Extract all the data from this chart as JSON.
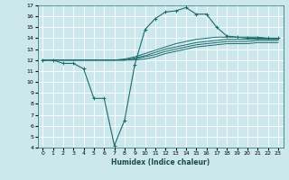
{
  "xlabel": "Humidex (Indice chaleur)",
  "ylabel": "",
  "bg_color": "#cce8ec",
  "line_color": "#1a6b6b",
  "grid_color": "#ffffff",
  "xlim": [
    -0.5,
    23.5
  ],
  "ylim": [
    4,
    17
  ],
  "xticks": [
    0,
    1,
    2,
    3,
    4,
    5,
    6,
    7,
    8,
    9,
    10,
    11,
    12,
    13,
    14,
    15,
    16,
    17,
    18,
    19,
    20,
    21,
    22,
    23
  ],
  "yticks": [
    4,
    5,
    6,
    7,
    8,
    9,
    10,
    11,
    12,
    13,
    14,
    15,
    16,
    17
  ],
  "lines": [
    {
      "x": [
        0,
        1,
        2,
        3,
        4,
        5,
        6,
        7,
        8,
        9,
        10,
        11,
        12,
        13,
        14,
        15,
        16,
        17,
        18,
        19,
        20,
        21,
        22,
        23
      ],
      "y": [
        12,
        12,
        11.7,
        11.7,
        11.2,
        8.5,
        8.5,
        4.2,
        6.5,
        11.6,
        14.8,
        15.8,
        16.4,
        16.5,
        16.8,
        16.2,
        16.2,
        15.0,
        14.2,
        14.1,
        14.0,
        14.0,
        14.0,
        14.0
      ],
      "marker": "+"
    },
    {
      "x": [
        0,
        1,
        2,
        3,
        4,
        5,
        6,
        7,
        8,
        9,
        10,
        11,
        12,
        13,
        14,
        15,
        16,
        17,
        18,
        19,
        20,
        21,
        22,
        23
      ],
      "y": [
        12,
        12,
        12,
        12,
        12,
        12,
        12,
        12,
        12.1,
        12.3,
        12.6,
        12.9,
        13.2,
        13.5,
        13.7,
        13.9,
        14.0,
        14.1,
        14.1,
        14.1,
        14.1,
        14.1,
        14.0,
        14.0
      ],
      "marker": null
    },
    {
      "x": [
        0,
        1,
        2,
        3,
        4,
        5,
        6,
        7,
        8,
        9,
        10,
        11,
        12,
        13,
        14,
        15,
        16,
        17,
        18,
        19,
        20,
        21,
        22,
        23
      ],
      "y": [
        12,
        12,
        12,
        12,
        12,
        12,
        12,
        12,
        12.0,
        12.2,
        12.4,
        12.7,
        13.0,
        13.2,
        13.4,
        13.6,
        13.7,
        13.8,
        13.9,
        13.9,
        13.9,
        13.9,
        13.9,
        13.9
      ],
      "marker": null
    },
    {
      "x": [
        0,
        1,
        2,
        3,
        4,
        5,
        6,
        7,
        8,
        9,
        10,
        11,
        12,
        13,
        14,
        15,
        16,
        17,
        18,
        19,
        20,
        21,
        22,
        23
      ],
      "y": [
        12,
        12,
        12,
        12,
        12,
        12,
        12,
        12,
        12.0,
        12.1,
        12.3,
        12.5,
        12.8,
        13.0,
        13.2,
        13.4,
        13.5,
        13.6,
        13.7,
        13.7,
        13.7,
        13.8,
        13.8,
        13.8
      ],
      "marker": null
    },
    {
      "x": [
        0,
        1,
        2,
        3,
        4,
        5,
        6,
        7,
        8,
        9,
        10,
        11,
        12,
        13,
        14,
        15,
        16,
        17,
        18,
        19,
        20,
        21,
        22,
        23
      ],
      "y": [
        12,
        12,
        12,
        12,
        12,
        12,
        12,
        12,
        12.0,
        12.0,
        12.1,
        12.3,
        12.6,
        12.8,
        13.0,
        13.2,
        13.3,
        13.4,
        13.5,
        13.5,
        13.5,
        13.6,
        13.6,
        13.6
      ],
      "marker": null
    }
  ]
}
